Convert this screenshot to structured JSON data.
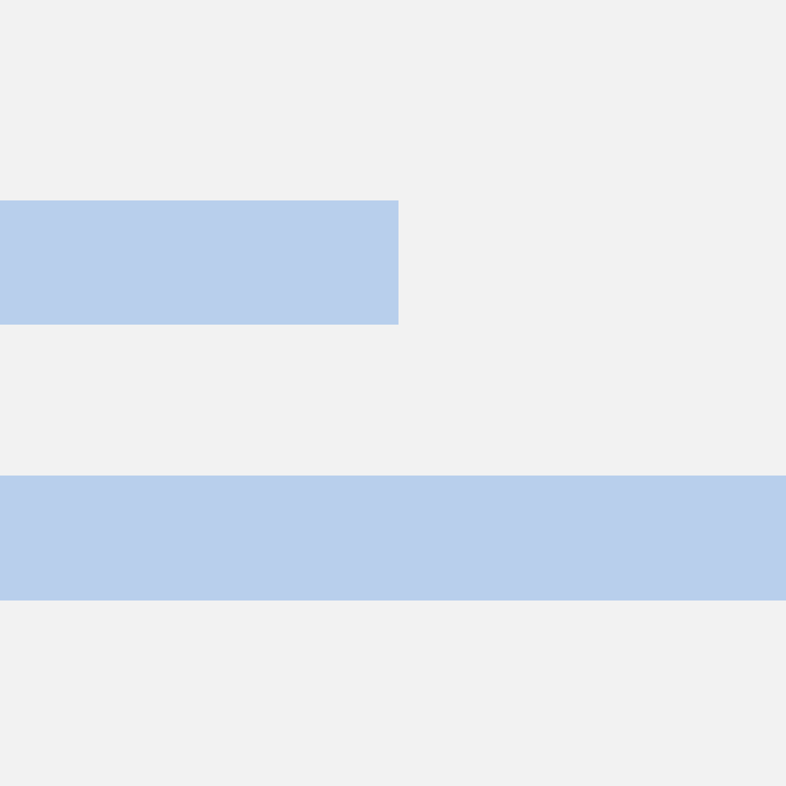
{
  "colors": {
    "background": "#f2f2f2",
    "bar": "#b8cfec"
  }
}
